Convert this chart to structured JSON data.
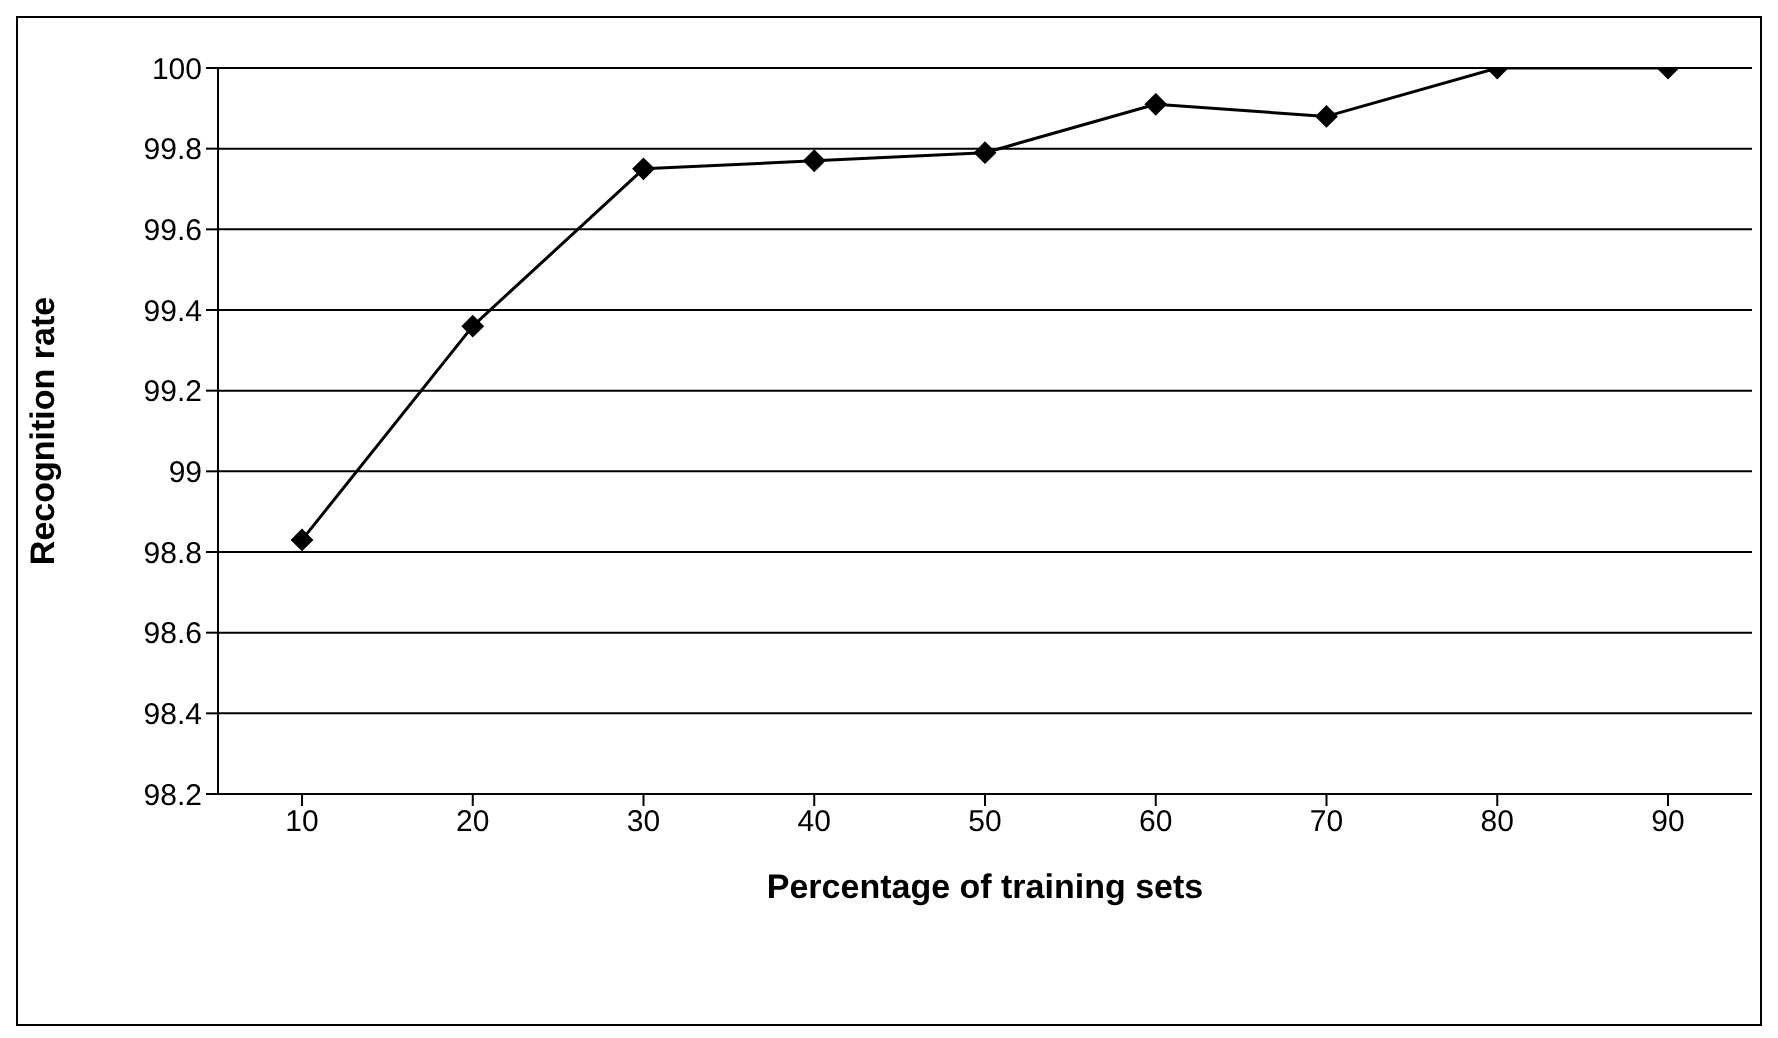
{
  "chart_data": {
    "type": "line",
    "xlabel": "Percentage of training sets",
    "ylabel": "Recognition rate",
    "categories": [
      "10",
      "20",
      "30",
      "40",
      "50",
      "60",
      "70",
      "80",
      "90"
    ],
    "series": [
      {
        "color": "#000000",
        "values": [
          98.83,
          99.36,
          99.75,
          99.77,
          99.79,
          99.91,
          99.88,
          100,
          100
        ]
      }
    ],
    "ylim": [
      98.2,
      100
    ],
    "yticks": [
      98.2,
      98.4,
      98.6,
      98.8,
      99,
      99.2,
      99.4,
      99.6,
      99.8,
      100
    ],
    "grid": "y",
    "marker": "diamond",
    "line_style": "solid"
  }
}
